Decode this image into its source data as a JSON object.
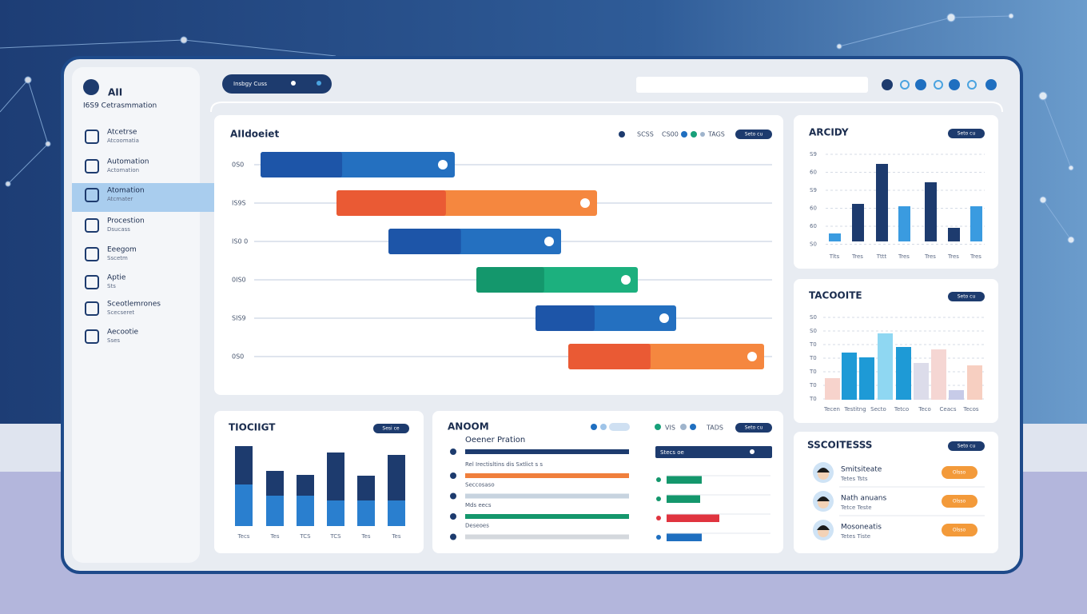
{
  "sidebar": {
    "logo": "AII",
    "subtitle": "I6S9 Cetrasmmation",
    "items": [
      {
        "label": "Atcetrse",
        "sub": "Atcoomatia"
      },
      {
        "label": "Automation",
        "sub": "Actomation"
      },
      {
        "label": "Atomation",
        "sub": "Atcmater"
      },
      {
        "label": "Procestion",
        "sub": "Dsucass"
      },
      {
        "label": "Eeegom",
        "sub": "Sscetm"
      },
      {
        "label": "Aptie",
        "sub": "Sts"
      },
      {
        "label": "Sceotlemrones",
        "sub": "Scecseret"
      },
      {
        "label": "Aecootie",
        "sub": "Sses"
      }
    ]
  },
  "topbar": {
    "tab": "Insbgy Cuss"
  },
  "gantt": {
    "title": "AIIdoeiet",
    "legend": [
      "SCSS",
      "CS00",
      "TAGS"
    ],
    "button": "Seto cu",
    "rows": [
      "0S0",
      "IS9S",
      "IS0 0",
      "0IS0",
      "SIS9",
      "0S0"
    ]
  },
  "activity": {
    "title": "ARCIDY",
    "button": "Seto cu",
    "yticks": [
      "S9",
      "60",
      "S9",
      "60",
      "60",
      "S0"
    ],
    "categories": [
      "Tlts",
      "Tres",
      "Tttt",
      "Tres",
      "Tres",
      "Tres",
      "Tres"
    ]
  },
  "taccoints": {
    "title": "TACOOITE",
    "button": "Seto cu",
    "yticks": [
      "S0",
      "S0",
      "T0",
      "T0",
      "T0",
      "T0",
      "T0"
    ],
    "categories": [
      "Tecen",
      "Testitng",
      "Secto",
      "Tetco",
      "Teco",
      "Ceacs",
      "Tecos"
    ]
  },
  "trend": {
    "title": "TIOCIIGT",
    "button": "Sesi ce",
    "categories": [
      "Tecs",
      "Tes",
      "TCS",
      "TCS",
      "Tes",
      "Tes"
    ]
  },
  "report": {
    "title": "ANOOM",
    "subtitle": "Oeener Pration",
    "lines": [
      "Rel Irectisltins dis Sxtlict s s",
      "Seccosaso",
      "Mds eecs",
      "Deseoes"
    ],
    "legend": [
      "VIS",
      "TADS"
    ],
    "button": "Seto cu",
    "header": "Stecs oe"
  },
  "contacts": {
    "title": "SSCOITESSS",
    "button": "Seto cu",
    "people": [
      {
        "name": "Smitsiteate",
        "sub": "Tetes Tsts",
        "action": "Olsso"
      },
      {
        "name": "Nath anuans",
        "sub": "Tetce Teste",
        "action": "Olsso"
      },
      {
        "name": "Mosoneatis",
        "sub": "Tetes Tiste",
        "action": "Olsso"
      }
    ]
  }
}
